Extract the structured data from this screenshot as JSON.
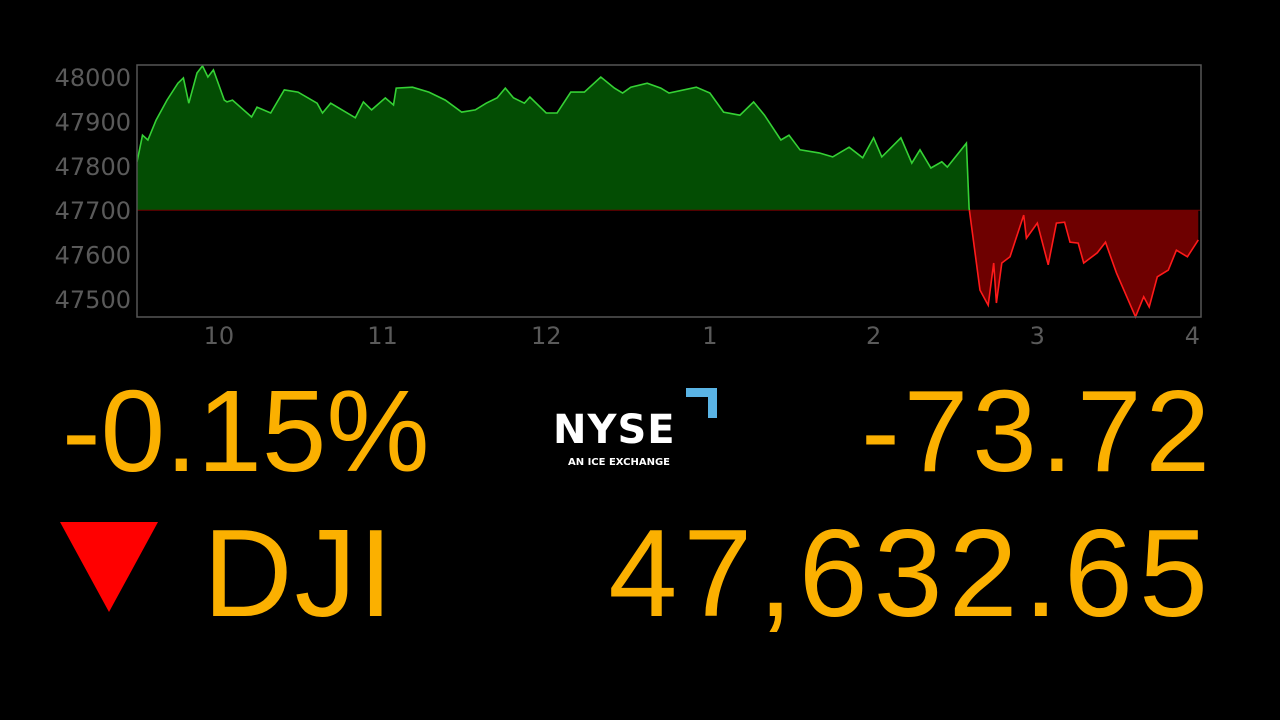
{
  "chart_data": {
    "type": "area",
    "title": "",
    "xlabel": "",
    "ylabel": "",
    "xlim": [
      "9:30",
      "16:00"
    ],
    "ylim": [
      47473,
      48040
    ],
    "baseline": 47700,
    "grid": false,
    "legend": "none",
    "colors": {
      "above": "#35d135",
      "above_fill": "#034d03",
      "below": "#ff1a1a",
      "below_fill": "#6e0000",
      "axis": "#555555",
      "tick_text": "#5a5a5a"
    },
    "yticks": [
      48000,
      47900,
      47800,
      47700,
      47600,
      47500
    ],
    "xticks": [
      {
        "t": "10:00",
        "label": "10"
      },
      {
        "t": "11:00",
        "label": "11"
      },
      {
        "t": "12:00",
        "label": "12"
      },
      {
        "t": "13:00",
        "label": "1"
      },
      {
        "t": "14:00",
        "label": "2"
      },
      {
        "t": "15:00",
        "label": "3"
      },
      {
        "t": "16:00",
        "label": "4"
      }
    ],
    "points": [
      [
        "9:30",
        47809
      ],
      [
        "9:32",
        47869
      ],
      [
        "9:34",
        47858
      ],
      [
        "9:37",
        47903
      ],
      [
        "9:41",
        47948
      ],
      [
        "9:45",
        47986
      ],
      [
        "9:47",
        47998
      ],
      [
        "9:49",
        47941
      ],
      [
        "9:52",
        48009
      ],
      [
        "9:54",
        48025
      ],
      [
        "9:56",
        48000
      ],
      [
        "9:58",
        48016
      ],
      [
        "10:02",
        47948
      ],
      [
        "10:03",
        47944
      ],
      [
        "10:05",
        47948
      ],
      [
        "10:12",
        47910
      ],
      [
        "10:14",
        47932
      ],
      [
        "10:19",
        47919
      ],
      [
        "10:24",
        47971
      ],
      [
        "10:29",
        47966
      ],
      [
        "10:36",
        47941
      ],
      [
        "10:38",
        47919
      ],
      [
        "10:41",
        47941
      ],
      [
        "10:50",
        47908
      ],
      [
        "10:53",
        47944
      ],
      [
        "10:56",
        47926
      ],
      [
        "11:01",
        47953
      ],
      [
        "11:04",
        47937
      ],
      [
        "11:05",
        47975
      ],
      [
        "11:11",
        47977
      ],
      [
        "11:17",
        47966
      ],
      [
        "11:23",
        47948
      ],
      [
        "11:29",
        47921
      ],
      [
        "11:34",
        47926
      ],
      [
        "11:38",
        47941
      ],
      [
        "11:42",
        47953
      ],
      [
        "11:45",
        47975
      ],
      [
        "11:48",
        47953
      ],
      [
        "11:52",
        47941
      ],
      [
        "11:54",
        47955
      ],
      [
        "12:00",
        47919
      ],
      [
        "12:04",
        47919
      ],
      [
        "12:09",
        47966
      ],
      [
        "12:14",
        47966
      ],
      [
        "12:20",
        48000
      ],
      [
        "12:25",
        47975
      ],
      [
        "12:28",
        47964
      ],
      [
        "12:31",
        47977
      ],
      [
        "12:37",
        47986
      ],
      [
        "12:42",
        47975
      ],
      [
        "12:45",
        47964
      ],
      [
        "12:55",
        47977
      ],
      [
        "13:00",
        47964
      ],
      [
        "13:05",
        47921
      ],
      [
        "13:11",
        47914
      ],
      [
        "13:16",
        47944
      ],
      [
        "13:20",
        47914
      ],
      [
        "13:26",
        47858
      ],
      [
        "13:29",
        47869
      ],
      [
        "13:33",
        47836
      ],
      [
        "13:40",
        47829
      ],
      [
        "13:45",
        47820
      ],
      [
        "13:51",
        47842
      ],
      [
        "13:56",
        47818
      ],
      [
        "14:00",
        47863
      ],
      [
        "14:03",
        47820
      ],
      [
        "14:10",
        47863
      ],
      [
        "14:14",
        47806
      ],
      [
        "14:17",
        47836
      ],
      [
        "14:21",
        47795
      ],
      [
        "14:25",
        47809
      ],
      [
        "14:27",
        47797
      ],
      [
        "14:34",
        47851
      ],
      [
        "14:35",
        47705
      ],
      [
        "14:39",
        47520
      ],
      [
        "14:42",
        47486
      ],
      [
        "14:44",
        47581
      ],
      [
        "14:45",
        47491
      ],
      [
        "14:47",
        47581
      ],
      [
        "14:50",
        47595
      ],
      [
        "14:55",
        47689
      ],
      [
        "14:56",
        47637
      ],
      [
        "15:00",
        47671
      ],
      [
        "15:04",
        47577
      ],
      [
        "15:07",
        47671
      ],
      [
        "15:10",
        47673
      ],
      [
        "15:12",
        47628
      ],
      [
        "15:15",
        47626
      ],
      [
        "15:17",
        47581
      ],
      [
        "15:22",
        47604
      ],
      [
        "15:25",
        47628
      ],
      [
        "15:29",
        47559
      ],
      [
        "15:36",
        47460
      ],
      [
        "15:39",
        47505
      ],
      [
        "15:41",
        47482
      ],
      [
        "15:44",
        47550
      ],
      [
        "15:48",
        47565
      ],
      [
        "15:51",
        47610
      ],
      [
        "15:55",
        47595
      ],
      [
        "15:59",
        47633
      ]
    ]
  },
  "ticker": {
    "percent_change": "-0.15%",
    "point_change": "-73.72",
    "symbol": "DJI",
    "price": "47,632.65",
    "direction": "down",
    "direction_color": "#ff0000",
    "text_color": "#fbb000"
  },
  "logo": {
    "wordmark": "NYSE",
    "tagline": "AN ICE EXCHANGE",
    "accent_color": "#5ab4e5"
  }
}
